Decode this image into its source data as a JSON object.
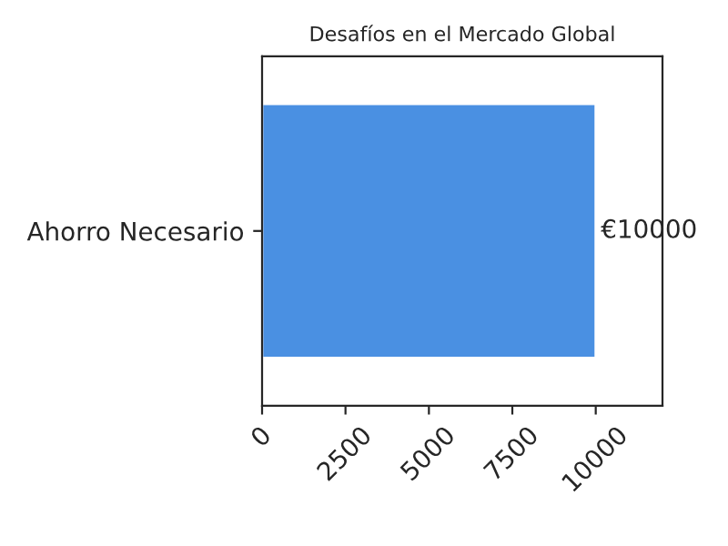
{
  "chart_data": {
    "type": "bar",
    "orientation": "horizontal",
    "title": "Desafíos en el Mercado Global",
    "categories": [
      "Ahorro Necesario"
    ],
    "values": [
      10000
    ],
    "color": "#4a90e2",
    "value_labels": [
      "€10000"
    ],
    "xlim": [
      0,
      12000
    ],
    "xticks": [
      0,
      2500,
      5000,
      7500,
      10000
    ],
    "grid": false
  }
}
